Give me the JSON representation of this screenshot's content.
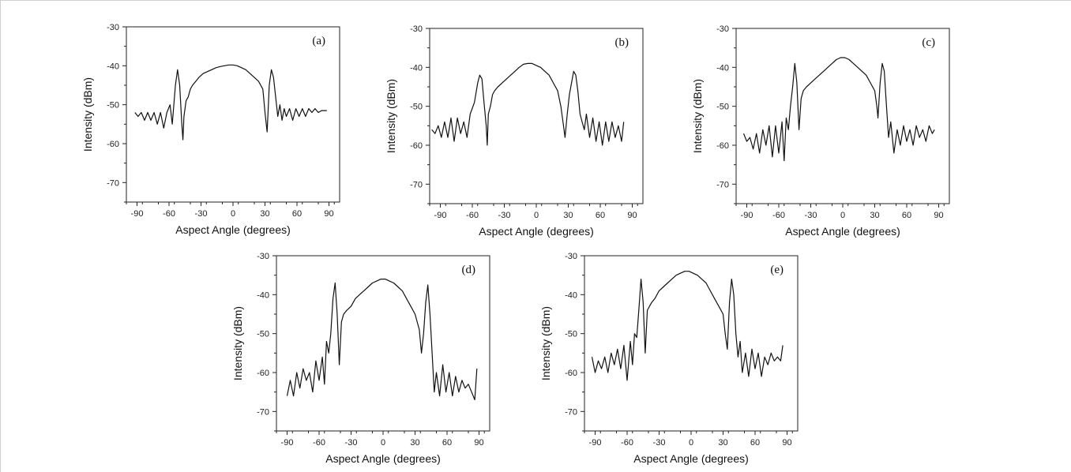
{
  "chart_data": [
    {
      "type": "line",
      "label": "(a)",
      "xlabel": "Aspect Angle (degrees)",
      "ylabel": "Intensity (dBm)",
      "xlim": [
        -100,
        100
      ],
      "ylim": [
        -75,
        -30
      ],
      "xticks": [
        -90,
        -60,
        -30,
        0,
        30,
        60,
        90
      ],
      "yticks": [
        -30,
        -40,
        -50,
        -60,
        -70
      ],
      "grid": false,
      "series": [
        {
          "x": [
            -92,
            -89,
            -86,
            -83,
            -80,
            -77,
            -74,
            -71,
            -68,
            -65,
            -62,
            -59,
            -57,
            -54,
            -52,
            -50,
            -48,
            -47,
            -46,
            -44,
            -42,
            -40,
            -38,
            -35,
            -32,
            -28,
            -24,
            -20,
            -16,
            -12,
            -8,
            -4,
            0,
            4,
            8,
            12,
            16,
            20,
            24,
            28,
            30,
            32,
            33,
            34,
            36,
            38,
            40,
            42,
            44,
            46,
            48,
            50,
            53,
            56,
            59,
            62,
            65,
            68,
            71,
            74,
            77,
            80,
            83,
            86,
            88
          ],
          "y": [
            -52,
            -53,
            -52,
            -54,
            -52,
            -54,
            -52,
            -55,
            -52,
            -56,
            -52,
            -50,
            -55,
            -45,
            -41,
            -45,
            -55,
            -59,
            -53,
            -49,
            -48,
            -46,
            -45,
            -44,
            -43,
            -42,
            -41.5,
            -41,
            -40.5,
            -40.2,
            -40,
            -39.8,
            -39.8,
            -40,
            -40.5,
            -41,
            -42,
            -43,
            -44,
            -46,
            -52,
            -57,
            -51,
            -45,
            -41,
            -43,
            -48,
            -53,
            -50,
            -54,
            -51,
            -53,
            -51,
            -54,
            -51,
            -53,
            -51,
            -53,
            -51,
            -52,
            -51,
            -52,
            -51.5,
            -51.5,
            -51.5
          ]
        }
      ]
    },
    {
      "type": "line",
      "label": "(b)",
      "xlabel": "Aspect Angle (degrees)",
      "ylabel": "Intensity (dBm)",
      "xlim": [
        -100,
        100
      ],
      "ylim": [
        -75,
        -30
      ],
      "xticks": [
        -90,
        -60,
        -30,
        0,
        30,
        60,
        90
      ],
      "yticks": [
        -30,
        -40,
        -50,
        -60,
        -70
      ],
      "grid": false,
      "series": [
        {
          "x": [
            -98,
            -95,
            -92,
            -89,
            -86,
            -83,
            -80,
            -77,
            -74,
            -71,
            -68,
            -65,
            -62,
            -58,
            -55,
            -53,
            -51,
            -49,
            -47,
            -46,
            -45,
            -43,
            -41,
            -39,
            -36,
            -32,
            -28,
            -24,
            -20,
            -16,
            -12,
            -8,
            -4,
            0,
            4,
            8,
            12,
            16,
            20,
            23,
            25,
            27,
            29,
            31,
            33,
            35,
            37,
            39,
            41,
            43,
            45,
            47,
            50,
            53,
            56,
            59,
            62,
            65,
            68,
            71,
            74,
            77,
            80,
            82
          ],
          "y": [
            -56,
            -57,
            -55,
            -58,
            -54,
            -58,
            -53,
            -59,
            -53,
            -57,
            -54,
            -58,
            -52,
            -49,
            -44,
            -42,
            -43,
            -49,
            -55,
            -60,
            -52,
            -50,
            -47,
            -46,
            -45,
            -44,
            -43,
            -42,
            -41,
            -40,
            -39.2,
            -39,
            -39,
            -39.5,
            -40,
            -41,
            -42,
            -44,
            -46,
            -50,
            -54,
            -58,
            -52,
            -47,
            -44,
            -41,
            -42,
            -46,
            -52,
            -54,
            -56,
            -52,
            -58,
            -53,
            -59,
            -54,
            -60,
            -54,
            -59,
            -54,
            -58,
            -55,
            -59,
            -54
          ]
        }
      ]
    },
    {
      "type": "line",
      "label": "(c)",
      "xlabel": "Aspect Angle (degrees)",
      "ylabel": "Intensity (dBm)",
      "xlim": [
        -100,
        100
      ],
      "ylim": [
        -75,
        -30
      ],
      "xticks": [
        -90,
        -60,
        -30,
        0,
        30,
        60,
        90
      ],
      "yticks": [
        -30,
        -40,
        -50,
        -60,
        -70
      ],
      "grid": false,
      "series": [
        {
          "x": [
            -93,
            -90,
            -87,
            -84,
            -81,
            -78,
            -75,
            -72,
            -69,
            -66,
            -63,
            -60,
            -57,
            -55,
            -53,
            -51,
            -49,
            -47,
            -45,
            -43,
            -41,
            -39,
            -37,
            -34,
            -30,
            -26,
            -22,
            -18,
            -14,
            -10,
            -6,
            -2,
            2,
            6,
            10,
            14,
            18,
            22,
            26,
            30,
            32,
            33,
            35,
            37,
            39,
            41,
            43,
            45,
            48,
            51,
            54,
            57,
            60,
            63,
            66,
            69,
            72,
            75,
            78,
            81,
            84,
            86
          ],
          "y": [
            -57,
            -59,
            -58,
            -61,
            -57,
            -62,
            -56,
            -60,
            -55,
            -63,
            -55,
            -62,
            -54,
            -64,
            -53,
            -56,
            -50,
            -45,
            -39,
            -44,
            -56,
            -48,
            -46,
            -45,
            -44,
            -43,
            -42,
            -41,
            -40,
            -39,
            -38,
            -37.5,
            -37.5,
            -38,
            -39,
            -40,
            -41,
            -42,
            -44,
            -46,
            -50,
            -53,
            -44,
            -39,
            -41,
            -50,
            -58,
            -54,
            -62,
            -56,
            -60,
            -55,
            -59,
            -56,
            -60,
            -55,
            -58,
            -56,
            -59,
            -55,
            -57,
            -56
          ]
        }
      ]
    },
    {
      "type": "line",
      "label": "(d)",
      "xlabel": "Aspect Angle (degrees)",
      "ylabel": "Intensity (dBm)",
      "xlim": [
        -100,
        100
      ],
      "ylim": [
        -75,
        -30
      ],
      "xticks": [
        -90,
        -60,
        -30,
        0,
        30,
        60,
        90
      ],
      "yticks": [
        -30,
        -40,
        -50,
        -60,
        -70
      ],
      "grid": false,
      "series": [
        {
          "x": [
            -90,
            -87,
            -84,
            -81,
            -78,
            -75,
            -72,
            -69,
            -66,
            -63,
            -60,
            -57,
            -55,
            -53,
            -51,
            -49,
            -47,
            -45,
            -43,
            -41,
            -39,
            -37,
            -34,
            -30,
            -26,
            -22,
            -18,
            -14,
            -10,
            -6,
            -2,
            2,
            6,
            10,
            14,
            18,
            22,
            26,
            30,
            32,
            34,
            36,
            38,
            40,
            42,
            44,
            46,
            48,
            50,
            53,
            56,
            59,
            62,
            65,
            68,
            71,
            74,
            77,
            80,
            83,
            86,
            88
          ],
          "y": [
            -66,
            -62,
            -66,
            -60,
            -64,
            -59,
            -62,
            -60,
            -65,
            -57,
            -62,
            -56,
            -63,
            -52,
            -55,
            -50,
            -41,
            -37,
            -45,
            -58,
            -47,
            -45,
            -44,
            -43,
            -41,
            -40,
            -39,
            -38,
            -37,
            -36.5,
            -36,
            -36,
            -36.5,
            -37,
            -38,
            -39,
            -41,
            -43,
            -45,
            -47,
            -49,
            -55,
            -50,
            -42,
            -37.5,
            -45,
            -55,
            -65,
            -60,
            -66,
            -58,
            -65,
            -60,
            -66,
            -61,
            -65,
            -62,
            -64,
            -63,
            -65,
            -67,
            -59
          ]
        }
      ]
    },
    {
      "type": "line",
      "label": "(e)",
      "xlabel": "Aspect Angle (degrees)",
      "ylabel": "Intensity (dBm)",
      "xlim": [
        -100,
        100
      ],
      "ylim": [
        -75,
        -30
      ],
      "xticks": [
        -90,
        -60,
        -30,
        0,
        30,
        60,
        90
      ],
      "yticks": [
        -30,
        -40,
        -50,
        -60,
        -70
      ],
      "grid": false,
      "series": [
        {
          "x": [
            -93,
            -90,
            -87,
            -84,
            -81,
            -78,
            -75,
            -72,
            -69,
            -66,
            -63,
            -60,
            -57,
            -55,
            -53,
            -51,
            -49,
            -47,
            -45,
            -43,
            -41,
            -39,
            -37,
            -34,
            -30,
            -26,
            -22,
            -18,
            -14,
            -10,
            -6,
            -2,
            2,
            6,
            10,
            14,
            18,
            22,
            26,
            30,
            32,
            34,
            36,
            38,
            40,
            42,
            44,
            46,
            48,
            51,
            54,
            57,
            60,
            63,
            66,
            69,
            72,
            75,
            78,
            81,
            84,
            86
          ],
          "y": [
            -56,
            -60,
            -57,
            -59,
            -56,
            -60,
            -55,
            -58,
            -54,
            -59,
            -53,
            -62,
            -52,
            -58,
            -50,
            -51,
            -44,
            -36,
            -42,
            -55,
            -44,
            -43,
            -42,
            -41,
            -39,
            -38,
            -37,
            -36,
            -35,
            -34.5,
            -34,
            -34,
            -34.5,
            -35,
            -36,
            -37,
            -39,
            -41,
            -43,
            -45,
            -50,
            -54,
            -42,
            -36,
            -40,
            -50,
            -56,
            -52,
            -60,
            -55,
            -61,
            -54,
            -59,
            -55,
            -61,
            -56,
            -58,
            -55,
            -57,
            -56,
            -57,
            -53
          ]
        }
      ]
    }
  ]
}
